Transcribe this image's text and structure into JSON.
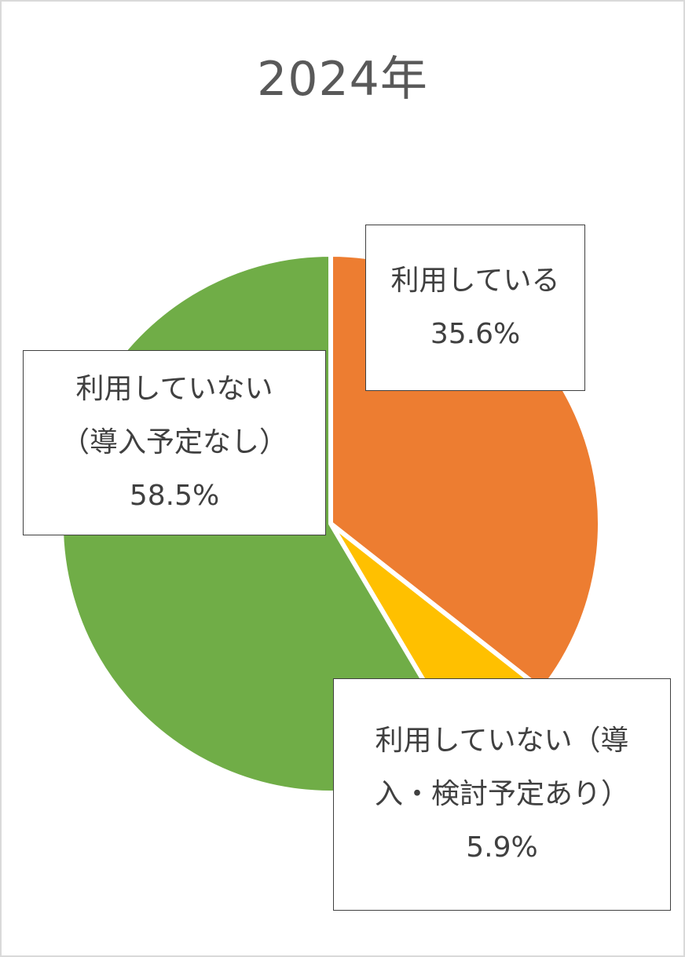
{
  "chart_data": {
    "type": "pie",
    "title": "2024年",
    "slices": [
      {
        "name": "利用している",
        "label_lines": [
          "利用している"
        ],
        "value": 35.6,
        "value_label": "35.6%",
        "color": "#ED7D31"
      },
      {
        "name": "利用していない（導入・検討予定あり）",
        "label_lines": [
          "利用していない（導",
          "入・検討予定あり）"
        ],
        "value": 5.9,
        "value_label": "5.9%",
        "color": "#FFC000"
      },
      {
        "name": "利用していない（導入予定なし）",
        "label_lines": [
          "利用していない",
          "（導入予定なし）"
        ],
        "value": 58.5,
        "value_label": "58.5%",
        "color": "#70AD47"
      }
    ],
    "start_angle_deg": 0,
    "direction": "clockwise",
    "legend": "none",
    "slice_border_color": "#FFFFFF"
  }
}
